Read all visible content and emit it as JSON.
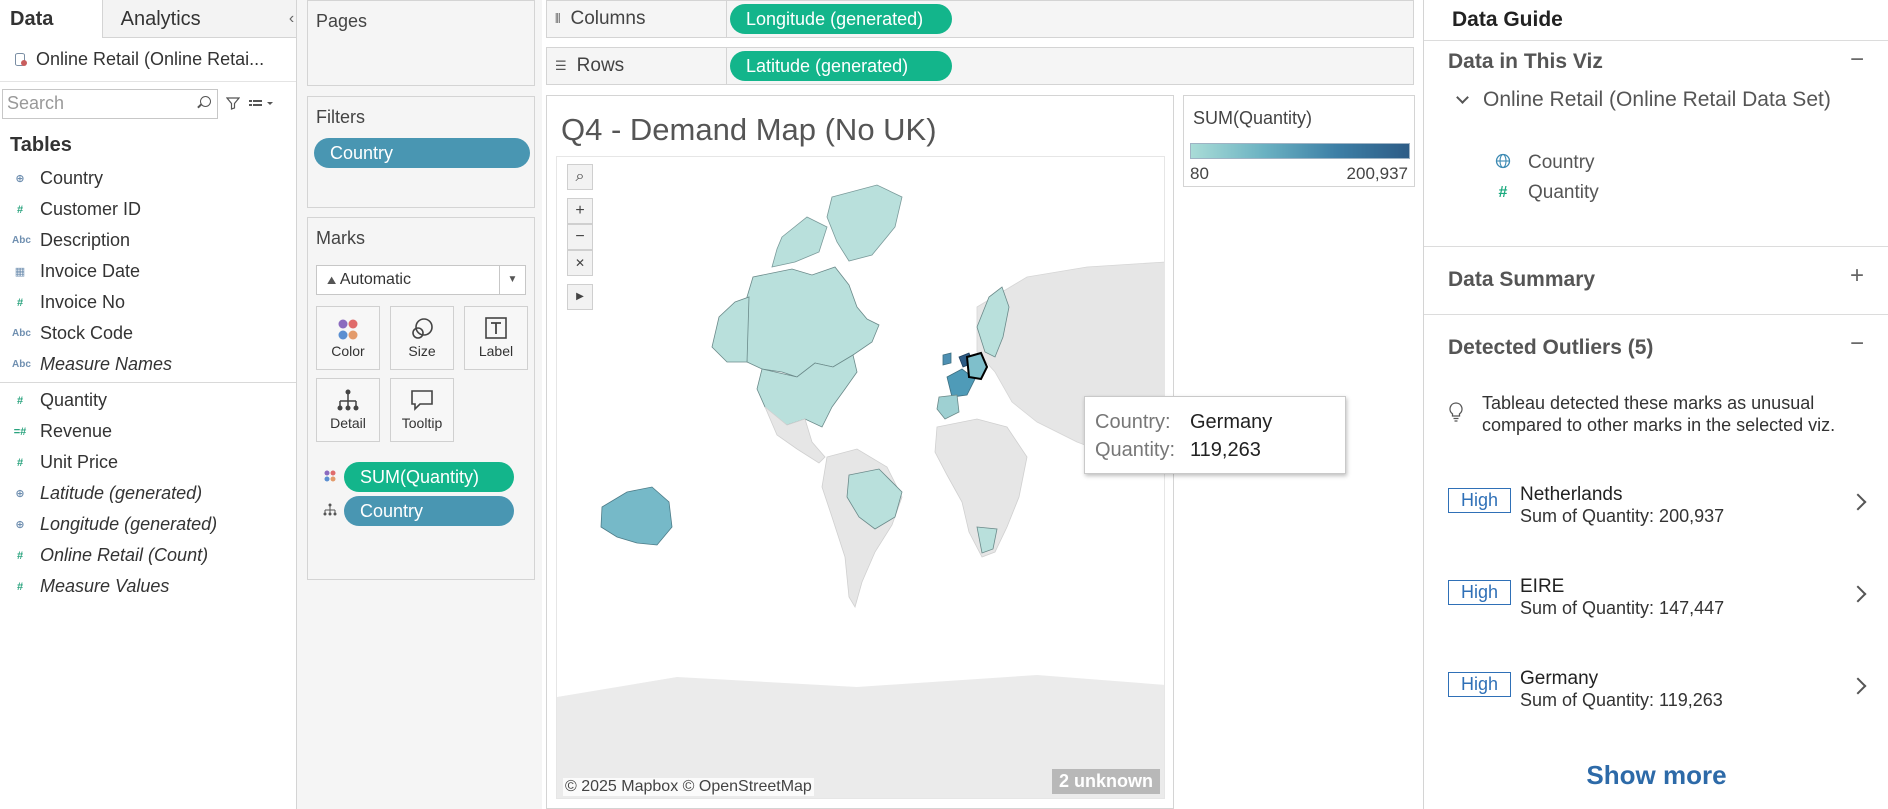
{
  "left": {
    "tabs": {
      "data": "Data",
      "analytics": "Analytics"
    },
    "datasource": "Online Retail (Online Retai...",
    "search_placeholder": "Search",
    "tables_heading": "Tables",
    "dimensions": [
      {
        "label": "Country",
        "icon": "globe"
      },
      {
        "label": "Customer ID",
        "icon": "hash"
      },
      {
        "label": "Description",
        "icon": "abc"
      },
      {
        "label": "Invoice Date",
        "icon": "calendar"
      },
      {
        "label": "Invoice No",
        "icon": "hash"
      },
      {
        "label": "Stock Code",
        "icon": "abc"
      },
      {
        "label": "Measure Names",
        "icon": "abc"
      }
    ],
    "measures": [
      {
        "label": "Quantity",
        "icon": "hash"
      },
      {
        "label": "Revenue",
        "icon": "calc-hash"
      },
      {
        "label": "Unit Price",
        "icon": "hash"
      },
      {
        "label": "Latitude (generated)",
        "icon": "globe"
      },
      {
        "label": "Longitude (generated)",
        "icon": "globe"
      },
      {
        "label": "Online Retail (Count)",
        "icon": "hash"
      },
      {
        "label": "Measure Values",
        "icon": "hash"
      }
    ]
  },
  "shelves": {
    "pages": "Pages",
    "filters": "Filters",
    "filter_pill": "Country",
    "marks": "Marks",
    "mark_type": "Automatic",
    "mark_buttons": {
      "color": "Color",
      "size": "Size",
      "label": "Label",
      "detail": "Detail",
      "tooltip": "Tooltip"
    },
    "mark_pills": {
      "color_field": "SUM(Quantity)",
      "detail_field": "Country"
    },
    "columns_label": "Columns",
    "columns_pill": "Longitude (generated)",
    "rows_label": "Rows",
    "rows_pill": "Latitude (generated)"
  },
  "viz": {
    "title": "Q4 - Demand Map (No UK)",
    "attribution": "© 2025 Mapbox © OpenStreetMap",
    "unknown": "2 unknown",
    "tooltip": {
      "country_key": "Country:",
      "country_val": "Germany",
      "qty_key": "Quantity:",
      "qty_val": "119,263"
    }
  },
  "legend": {
    "title": "SUM(Quantity)",
    "min": "80",
    "max": "200,937",
    "colors": {
      "low": "#a9dcd7",
      "high": "#2d5c86"
    }
  },
  "guide": {
    "title": "Data Guide",
    "in_viz": "Data in This Viz",
    "datasource": "Online Retail (Online Retail Data Set)",
    "fields": [
      "Country",
      "Quantity"
    ],
    "summary": "Data Summary",
    "outliers_title": "Detected Outliers (5)",
    "outliers_note": "Tableau detected these marks as unusual compared to other marks in the selected viz.",
    "outliers": [
      {
        "badge": "High",
        "name": "Netherlands",
        "value": "Sum of Quantity: 200,937"
      },
      {
        "badge": "High",
        "name": "EIRE",
        "value": "Sum of Quantity: 147,447"
      },
      {
        "badge": "High",
        "name": "Germany",
        "value": "Sum of Quantity: 119,263"
      }
    ],
    "show_more": "Show more"
  }
}
